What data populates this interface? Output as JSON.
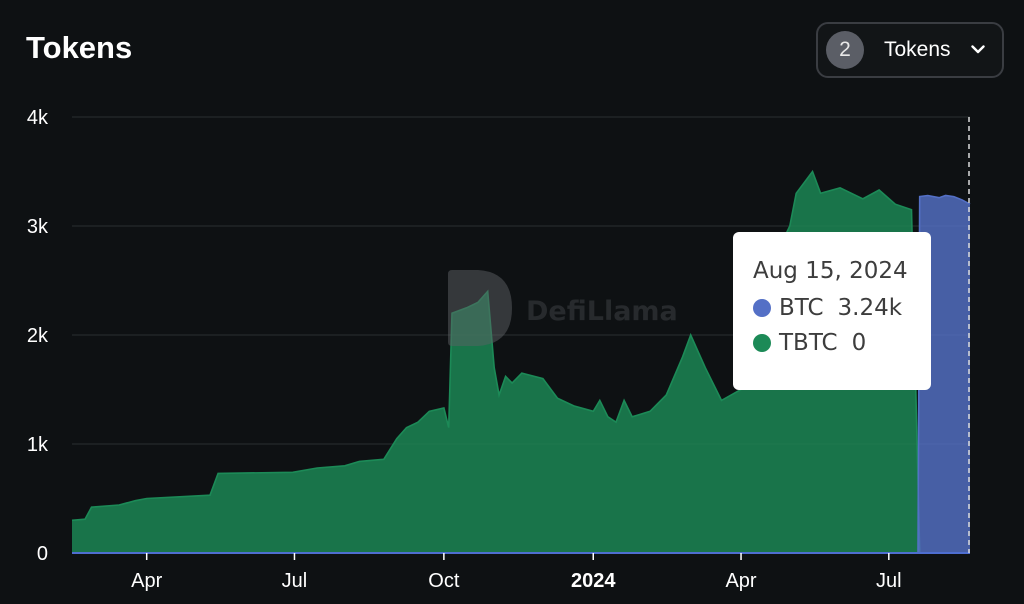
{
  "header": {
    "title": "Tokens"
  },
  "token_select": {
    "count": "2",
    "label": "Tokens",
    "icon": "chevron-down-icon"
  },
  "watermark": {
    "text": "DefiLlama"
  },
  "tooltip": {
    "date": "Aug 15, 2024",
    "rows": [
      {
        "name": "BTC",
        "value": "3.24k",
        "color": "#5470c6"
      },
      {
        "name": "TBTC",
        "value": "0",
        "color": "#1c8a57"
      }
    ]
  },
  "chart_data": {
    "type": "area",
    "stacked": true,
    "ylim": [
      0,
      4000
    ],
    "xlim": [
      "2023-02-14",
      "2024-08-20"
    ],
    "y_ticks": [
      {
        "value": 0,
        "label": "0"
      },
      {
        "value": 1000,
        "label": "1k"
      },
      {
        "value": 2000,
        "label": "2k"
      },
      {
        "value": 3000,
        "label": "3k"
      },
      {
        "value": 4000,
        "label": "4k"
      }
    ],
    "x_ticks": [
      {
        "date": "2023-04-01",
        "label": "Apr",
        "bold": false
      },
      {
        "date": "2023-07-01",
        "label": "Jul",
        "bold": false
      },
      {
        "date": "2023-10-01",
        "label": "Oct",
        "bold": false
      },
      {
        "date": "2024-01-01",
        "label": "2024",
        "bold": true
      },
      {
        "date": "2024-04-01",
        "label": "Apr",
        "bold": false
      },
      {
        "date": "2024-07-01",
        "label": "Jul",
        "bold": false
      }
    ],
    "grid": true,
    "cursor_date": "2024-08-15",
    "series": [
      {
        "name": "TBTC",
        "color": "#1c8a57",
        "points": [
          [
            "2023-02-14",
            300
          ],
          [
            "2023-02-22",
            310
          ],
          [
            "2023-02-26",
            420
          ],
          [
            "2023-03-15",
            440
          ],
          [
            "2023-03-25",
            480
          ],
          [
            "2023-04-01",
            500
          ],
          [
            "2023-05-10",
            530
          ],
          [
            "2023-05-15",
            730
          ],
          [
            "2023-06-30",
            740
          ],
          [
            "2023-07-15",
            780
          ],
          [
            "2023-08-01",
            800
          ],
          [
            "2023-08-10",
            840
          ],
          [
            "2023-08-25",
            860
          ],
          [
            "2023-09-02",
            1050
          ],
          [
            "2023-09-08",
            1150
          ],
          [
            "2023-09-15",
            1200
          ],
          [
            "2023-09-22",
            1300
          ],
          [
            "2023-10-01",
            1330
          ],
          [
            "2023-10-04",
            1150
          ],
          [
            "2023-10-06",
            2200
          ],
          [
            "2023-10-15",
            2250
          ],
          [
            "2023-10-22",
            2300
          ],
          [
            "2023-10-28",
            2400
          ],
          [
            "2023-11-01",
            1700
          ],
          [
            "2023-11-04",
            1450
          ],
          [
            "2023-11-08",
            1620
          ],
          [
            "2023-11-12",
            1560
          ],
          [
            "2023-11-18",
            1650
          ],
          [
            "2023-12-01",
            1600
          ],
          [
            "2023-12-10",
            1420
          ],
          [
            "2023-12-20",
            1350
          ],
          [
            "2024-01-01",
            1300
          ],
          [
            "2024-01-05",
            1400
          ],
          [
            "2024-01-10",
            1250
          ],
          [
            "2024-01-15",
            1200
          ],
          [
            "2024-01-20",
            1400
          ],
          [
            "2024-01-25",
            1250
          ],
          [
            "2024-02-05",
            1300
          ],
          [
            "2024-02-15",
            1450
          ],
          [
            "2024-02-25",
            1800
          ],
          [
            "2024-03-01",
            2000
          ],
          [
            "2024-03-10",
            1700
          ],
          [
            "2024-03-20",
            1400
          ],
          [
            "2024-04-01",
            1500
          ],
          [
            "2024-04-15",
            2500
          ],
          [
            "2024-05-01",
            3000
          ],
          [
            "2024-05-05",
            3300
          ],
          [
            "2024-05-15",
            3500
          ],
          [
            "2024-05-20",
            3300
          ],
          [
            "2024-06-01",
            3350
          ],
          [
            "2024-06-15",
            3250
          ],
          [
            "2024-06-25",
            3330
          ],
          [
            "2024-07-05",
            3200
          ],
          [
            "2024-07-15",
            3150
          ],
          [
            "2024-07-20",
            0
          ],
          [
            "2024-08-20",
            0
          ]
        ]
      },
      {
        "name": "BTC",
        "color": "#5470c6",
        "points": [
          [
            "2024-07-19",
            0
          ],
          [
            "2024-07-20",
            3270
          ],
          [
            "2024-07-25",
            3280
          ],
          [
            "2024-08-01",
            3260
          ],
          [
            "2024-08-05",
            3280
          ],
          [
            "2024-08-10",
            3270
          ],
          [
            "2024-08-15",
            3240
          ],
          [
            "2024-08-20",
            3200
          ]
        ]
      }
    ]
  }
}
